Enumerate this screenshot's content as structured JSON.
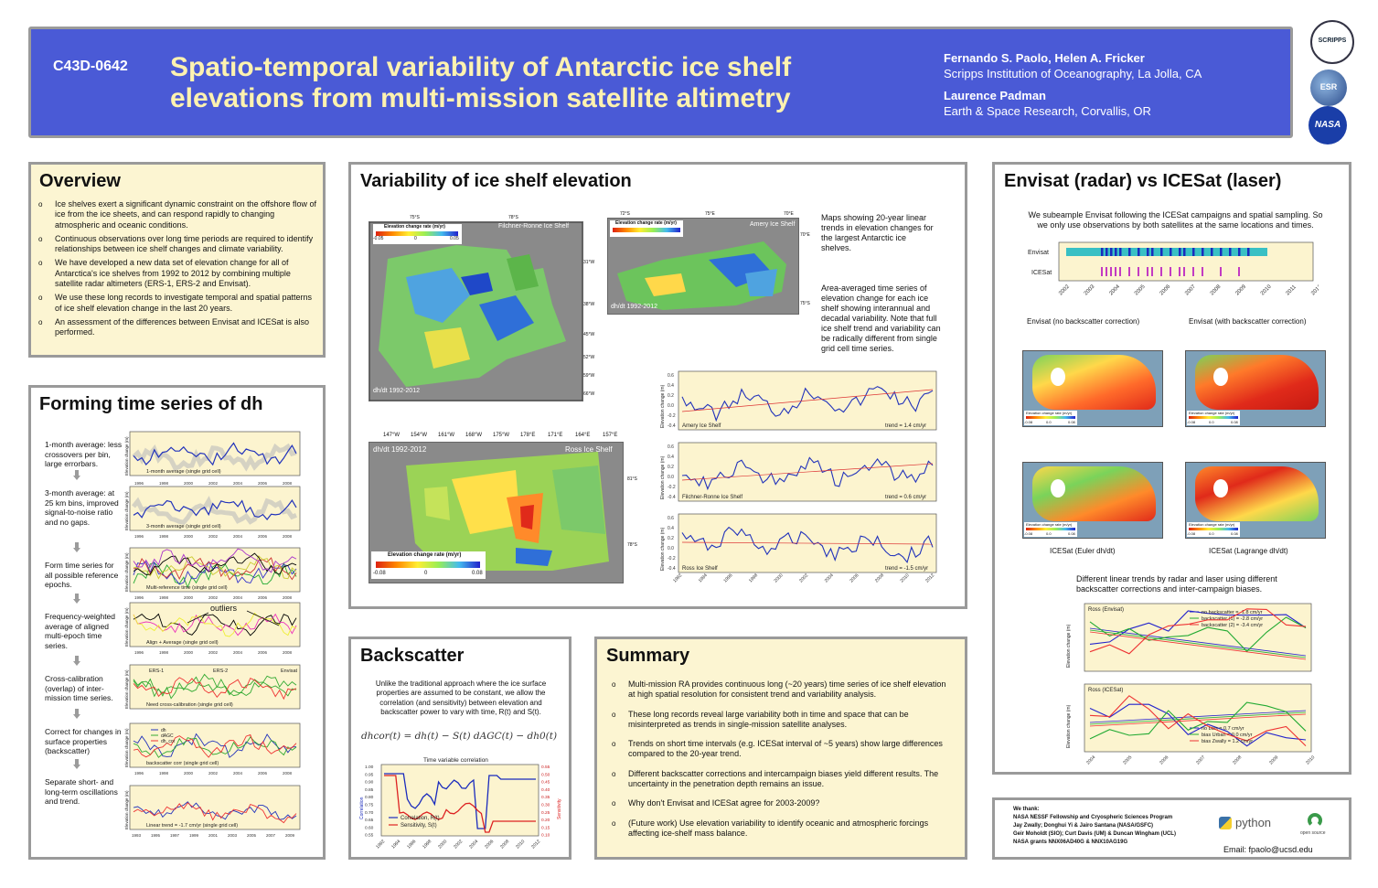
{
  "header": {
    "code": "C43D-0642",
    "title_line1": "Spatio-temporal variability of Antarctic ice shelf",
    "title_line2": "elevations from multi-mission satellite altimetry",
    "authors1": "Fernando S. Paolo, Helen A. Fricker",
    "affil1": "Scripps Institution of Oceanography, La Jolla, CA",
    "authors2": "Laurence Padman",
    "affil2": "Earth & Space Research, Corvallis, OR",
    "logos": [
      "SCRIPPS",
      "ESR",
      "NASA"
    ]
  },
  "overview": {
    "title": "Overview",
    "bullets": [
      "Ice shelves exert a significant dynamic constraint on the offshore flow of ice from the ice sheets, and can respond rapidly to changing atmospheric and oceanic conditions.",
      "Continuous observations over long time periods are required to identify relationships between ice shelf changes and climate variability.",
      "We have developed a new data set of elevation change for all of Antarctica's ice shelves from 1992 to 2012 by combining multiple satellite radar altimeters (ERS-1, ERS-2 and Envisat).",
      "We use these long records to investigate temporal and spatial patterns of ice shelf elevation change in the last 20 years.",
      "An assessment of the differences between Envisat and ICESat is also performed."
    ]
  },
  "forming": {
    "title": "Forming time series of dh",
    "steps": [
      "1-month average: less crossovers per bin, large errorbars.",
      "3-month average: at 25 km bins, improved signal-to-noise ratio and no gaps.",
      "Form time series for all possible reference epochs.",
      "Frequency-weighted average of aligned multi-epoch time series.",
      "Cross-calibration (overlap) of inter-mission time series.",
      "Correct for changes in surface properties (backscatter)",
      "Separate short- and long-term oscillations and trend."
    ],
    "plot_captions": [
      "1-month average (single grid cell)",
      "3-month average (single grid cell)",
      "Multi-reference time (single grid cell)",
      "Align + Average (single grid cell)",
      "Need cross-calibration (single grid cell)",
      "backscatter corr (single grid cell)",
      "Linear trend = -1.7 cm/yr (single grid cell)"
    ],
    "outliers": "outliers",
    "mission_labels": [
      "ERS-1",
      "ERS-2",
      "Envisat"
    ],
    "bs_legend": [
      "dh",
      "dAGC",
      "dh_cor"
    ],
    "ylabel": "Elevation change (m)",
    "years": [
      "1996",
      "1998",
      "2000",
      "2002",
      "2004",
      "2006",
      "2008"
    ],
    "last_years": [
      "1993",
      "1995",
      "1997",
      "1999",
      "2001",
      "2003",
      "2005",
      "2007",
      "2009"
    ]
  },
  "variability": {
    "title": "Variability of ice shelf elevation",
    "text1": "Maps showing 20-year linear trends in elevation changes for the largest Antarctic ice shelves.",
    "text2": "Area-averaged time series of elevation change for each ice shelf showing interannual and decadal variability. Note that full ice shelf trend and variability can be radically different from single grid cell time series.",
    "maps": [
      {
        "name": "Filchner-Ronne Ice Shelf",
        "period": "dh/dt 1992-2012",
        "colorbar": "Elevation change rate (m/yr)",
        "ticks": [
          "-0.05",
          "0",
          "0.05"
        ],
        "lon": [
          "75°S",
          "78°S"
        ],
        "lat": [
          "31°W",
          "38°W",
          "45°W",
          "52°W",
          "59°W",
          "66°W"
        ]
      },
      {
        "name": "Amery Ice Shelf",
        "period": "dh/dt 1992-2012",
        "colorbar": "Elevation change rate (m/yr)",
        "ticks": [],
        "lon": [
          "72°S",
          "75°E",
          "70°E",
          "68°S"
        ],
        "lat": [
          "70°E",
          "75°S"
        ]
      },
      {
        "name": "Ross Ice Shelf",
        "period": "dh/dt 1992-2012",
        "colorbar": "Elevation change rate (m/yr)",
        "ticks": [
          "-0.08",
          "0",
          "0.08"
        ],
        "lon": [
          "147°W",
          "154°W",
          "161°W",
          "168°W",
          "175°W",
          "178°E",
          "171°E",
          "164°E",
          "157°E"
        ],
        "lat": [
          "81°S",
          "78°S"
        ]
      }
    ],
    "series": [
      {
        "name": "Amery Ice Shelf",
        "trend": "trend = 1.4 cm/yr"
      },
      {
        "name": "Filchner-Ronne Ice Shelf",
        "trend": "trend = 0.6 cm/yr"
      },
      {
        "name": "Ross Ice Shelf",
        "trend": "trend = -1.5 cm/yr"
      }
    ],
    "ylabel": "Elevation change (m)",
    "years": [
      "1992",
      "1994",
      "1996",
      "1998",
      "2000",
      "2002",
      "2004",
      "2006",
      "2008",
      "2010",
      "2012"
    ],
    "yticks": [
      "0.6",
      "0.4",
      "0.2",
      "0.0",
      "-0.2",
      "-0.4"
    ]
  },
  "envisat": {
    "title": "Envisat (radar) vs ICESat (laser)",
    "text": "We subeample Envisat following the ICESat campaigns and spatial sampling. So we only use observations by both satellites at the same locations and times.",
    "rows": [
      "Envisat",
      "ICESat"
    ],
    "years": [
      "2002",
      "2003",
      "2004",
      "2005",
      "2006",
      "2007",
      "2008",
      "2009",
      "2010",
      "2011",
      "2012"
    ],
    "map_titles": [
      "Envisat (no backscatter correction)",
      "Envisat (with backscatter correction)",
      "ICESat (Euler dh/dt)",
      "ICESat (Lagrange dh/dt)"
    ],
    "map_colorbar": "Elevation change rate (m/yr)",
    "map_ticks": [
      "-0.08",
      "0.0",
      "0.08"
    ],
    "trend_text": "Different linear trends by radar and laser using different backscatter corrections and inter-campaign biases.",
    "ross_envisat": {
      "name": "Ross (Envisat)",
      "legend": [
        "no backscatter = -1.8 cm/yr",
        "backscatter (1) = -2.8 cm/yr",
        "backscatter (2) = -3.4 cm/yr"
      ]
    },
    "ross_icesat": {
      "name": "Ross (ICESat)",
      "legend": [
        "no bias = 0.7 cm/yr",
        "bias Urban = 0.0 cm/yr",
        "bias Zwally = 1.2 cm/yr"
      ]
    },
    "ylabel": "Elevation change (m)",
    "trend_years": [
      "2004",
      "2005",
      "2006",
      "2007",
      "2008",
      "2009",
      "2010"
    ]
  },
  "backscatter": {
    "title": "Backscatter",
    "text": "Unlike the traditional approach where the ice surface properties are assumed to be constant, we allow the correlation (and sensitivity) between elevation and backscatter power to vary with time, R(t) and S(t).",
    "equation": "dhcor(t) = dh(t) − S(t) dAGC(t) − dh0(t)",
    "chart_title": "Time variable correlation",
    "legend": [
      "Correlation, R(t)",
      "Sensitivity, S(t)"
    ],
    "ylabel_left": "Correlation",
    "ylabel_right": "Sensitivity",
    "years": [
      "1992",
      "1994",
      "1996",
      "1998",
      "2000",
      "2002",
      "2004",
      "2006",
      "2008",
      "2010",
      "2012"
    ],
    "yleft": [
      "1.00",
      "0.95",
      "0.90",
      "0.85",
      "0.80",
      "0.75",
      "0.70",
      "0.65",
      "0.60",
      "0.55"
    ],
    "yright": [
      "0.55",
      "0.50",
      "0.45",
      "0.40",
      "0.35",
      "0.30",
      "0.25",
      "0.20",
      "0.15",
      "0.10"
    ]
  },
  "summary": {
    "title": "Summary",
    "bullets": [
      "Multi-mission RA provides continuous long (~20 years) time series of ice shelf elevation at high spatial resolution for consistent trend and variability analysis.",
      "These long records reveal large variability both in time and space that can be misinterpreted as trends in single-mission satellite analyses.",
      "Trends on short time intervals (e.g. ICESat interval of ~5 years) show large differences compared to the 20-year trend.",
      "Different backscatter corrections and intercampaign biases yield different results. The uncertainty in the penetration depth remains an issue.",
      "Why don't Envisat and ICESat agree for 2003-2009?",
      "(Future work) Use elevation variability to identify oceanic and atmospheric forcings affecting ice-shelf mass balance."
    ]
  },
  "thanks": {
    "title": "We thank:",
    "lines": [
      "NASA NESSF Fellowship and Cryospheric Sciences Program",
      "Jay Zwally; Donghui Yi & Jairo Santana (NASA/GSFC)",
      "Geir Moholdt (SIO); Curt Davis (UM) & Duncan Wingham (UCL)",
      "NASA grants NNX06AD40G & NNX10AG19G"
    ],
    "python": "python",
    "opensource": "open source",
    "email": "Email: fpaolo@ucsd.edu"
  },
  "colors": {
    "header": "#4a5ad6",
    "title": "#fdf2b0",
    "panel_bg": "#fcf5d2",
    "border": "#9a9a9a"
  }
}
